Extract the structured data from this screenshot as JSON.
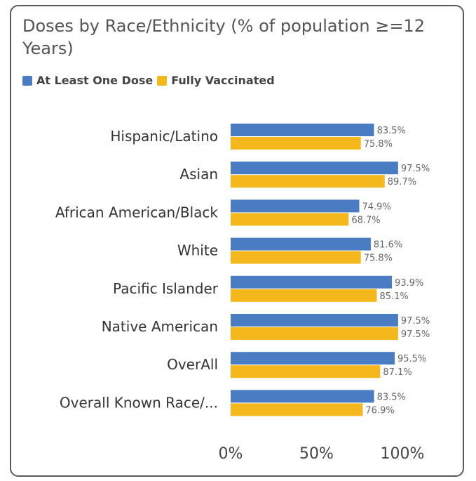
{
  "chart_data": {
    "type": "bar",
    "orientation": "horizontal",
    "title": "Doses by Race/Ethnicity (% of population ≥=12 Years)",
    "categories": [
      "Hispanic/Latino",
      "Asian",
      "African American/Black",
      "White",
      "Pacific Islander",
      "Native American",
      "OverAll",
      "Overall Known Race/..."
    ],
    "series": [
      {
        "name": "At Least One Dose",
        "color": "#4a7cc4",
        "values": [
          83.5,
          97.5,
          74.9,
          81.6,
          93.9,
          97.5,
          95.5,
          83.5
        ],
        "labels": [
          "83.5%",
          "97.5%",
          "74.9%",
          "81.6%",
          "93.9%",
          "97.5%",
          "95.5%",
          "83.5%"
        ]
      },
      {
        "name": "Fully Vaccinated",
        "color": "#f5b81c",
        "values": [
          75.8,
          89.7,
          68.7,
          75.8,
          85.1,
          97.5,
          87.1,
          76.9
        ],
        "labels": [
          "75.8%",
          "89.7%",
          "68.7%",
          "75.8%",
          "85.1%",
          "97.5%",
          "87.1%",
          "76.9%"
        ]
      }
    ],
    "xlim": [
      0,
      100
    ],
    "x_ticks": [
      "0%",
      "50%",
      "100%"
    ],
    "grid": false,
    "legend_position": "top-left"
  }
}
